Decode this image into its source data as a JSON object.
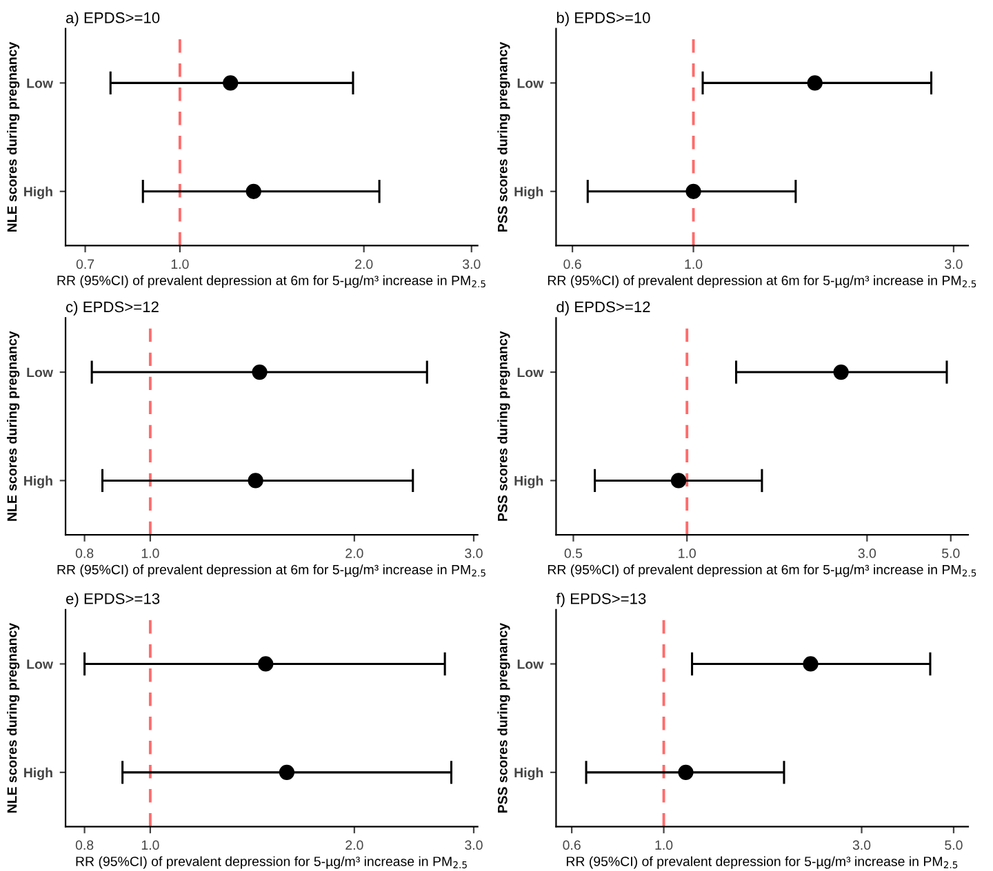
{
  "chart_data": [
    {
      "type": "scatter",
      "title": "a) EPDS>=10",
      "ylabel": "NLE scores during pregnancy",
      "xlabel": "RR (95%CI) of prevalent depression at 6m for 5-µg/m³ increase in PM$_{2.5}$",
      "orientation": "horizontal",
      "log": "x",
      "categories": [
        "Low",
        "High"
      ],
      "values": [
        1.21,
        1.32
      ],
      "errors": [
        [
          0.77,
          1.92
        ],
        [
          0.87,
          2.12
        ]
      ],
      "color": "#000000",
      "marker": "circle",
      "xlim": [
        0.65,
        3.07
      ],
      "xticks": [
        0.7,
        {
          "value": 1,
          "label": "1.0"
        },
        {
          "value": 2,
          "label": "2.0"
        },
        {
          "value": 3,
          "label": "3.0"
        }
      ],
      "ref_lines": [
        {
          "axis": "x",
          "value": 1.0,
          "color": "#ff6b6b",
          "line_style": "dashed"
        }
      ]
    },
    {
      "type": "scatter",
      "title": "b) EPDS>=10",
      "ylabel": "PSS scores during pregnancy",
      "xlabel": "RR (95%CI) of prevalent depression at 6m for 5-µg/m³ increase in PM$_{2.5}$",
      "orientation": "horizontal",
      "log": "x",
      "categories": [
        "Low",
        "High"
      ],
      "values": [
        1.67,
        1.0
      ],
      "errors": [
        [
          1.04,
          2.73
        ],
        [
          0.64,
          1.54
        ]
      ],
      "color": "#000000",
      "marker": "circle",
      "xlim": [
        0.56,
        3.19
      ],
      "xticks": [
        0.6,
        {
          "value": 1,
          "label": "1.0"
        },
        {
          "value": 3,
          "label": "3.0"
        }
      ],
      "ref_lines": [
        {
          "axis": "x",
          "value": 1.0,
          "color": "#ff6b6b",
          "line_style": "dashed"
        }
      ]
    },
    {
      "type": "scatter",
      "title": "c) EPDS>=12",
      "ylabel": "NLE scores during pregnancy",
      "xlabel": "RR (95%CI) of prevalent depression at 6m for 5-µg/m³ increase in PM$_{2.5}$",
      "orientation": "horizontal",
      "log": "x",
      "categories": [
        "Low",
        "High"
      ],
      "values": [
        1.45,
        1.43
      ],
      "errors": [
        [
          0.82,
          2.56
        ],
        [
          0.85,
          2.44
        ]
      ],
      "color": "#000000",
      "marker": "circle",
      "xlim": [
        0.75,
        3.04
      ],
      "xticks": [
        0.8,
        {
          "value": 1,
          "label": "1.0"
        },
        {
          "value": 2,
          "label": "2.0"
        },
        {
          "value": 3,
          "label": "3.0"
        }
      ],
      "ref_lines": [
        {
          "axis": "x",
          "value": 1.0,
          "color": "#ff6b6b",
          "line_style": "dashed"
        }
      ]
    },
    {
      "type": "scatter",
      "title": "d) EPDS>=12",
      "ylabel": "PSS scores during pregnancy",
      "xlabel": "RR (95%CI) of prevalent depression at 6m for 5-µg/m³ increase in PM$_{2.5}$",
      "orientation": "horizontal",
      "log": "x",
      "categories": [
        "Low",
        "High"
      ],
      "values": [
        2.56,
        0.95
      ],
      "errors": [
        [
          1.35,
          4.88
        ],
        [
          0.57,
          1.58
        ]
      ],
      "color": "#000000",
      "marker": "circle",
      "xlim": [
        0.45,
        5.56
      ],
      "xticks": [
        0.5,
        {
          "value": 1,
          "label": "1.0"
        },
        {
          "value": 3,
          "label": "3.0"
        },
        {
          "value": 5,
          "label": "5.0"
        }
      ],
      "ref_lines": [
        {
          "axis": "x",
          "value": 1.0,
          "color": "#ff6b6b",
          "line_style": "dashed"
        }
      ]
    },
    {
      "type": "scatter",
      "title": "e) EPDS>=13",
      "ylabel": "NLE scores during pregnancy",
      "xlabel": "RR (95%CI) of prevalent depression for 5-µg/m³ increase in PM$_{2.5}$",
      "orientation": "horizontal",
      "log": "x",
      "categories": [
        "Low",
        "High"
      ],
      "values": [
        1.48,
        1.59
      ],
      "errors": [
        [
          0.8,
          2.72
        ],
        [
          0.91,
          2.78
        ]
      ],
      "color": "#000000",
      "marker": "circle",
      "xlim": [
        0.75,
        3.04
      ],
      "xticks": [
        0.8,
        {
          "value": 1,
          "label": "1.0"
        },
        {
          "value": 2,
          "label": "2.0"
        },
        {
          "value": 3,
          "label": "3.0"
        }
      ],
      "ref_lines": [
        {
          "axis": "x",
          "value": 1.0,
          "color": "#ff6b6b",
          "line_style": "dashed"
        }
      ]
    },
    {
      "type": "scatter",
      "title": "f) EPDS>=13",
      "ylabel": "PSS scores during pregnancy",
      "xlabel": "RR (95%CI) of prevalent depression for 5-µg/m³ increase in PM$_{2.5}$",
      "orientation": "horizontal",
      "log": "x",
      "categories": [
        "Low",
        "High"
      ],
      "values": [
        2.26,
        1.13
      ],
      "errors": [
        [
          1.17,
          4.39
        ],
        [
          0.65,
          1.95
        ]
      ],
      "color": "#000000",
      "marker": "circle",
      "xlim": [
        0.55,
        5.42
      ],
      "xticks": [
        0.6,
        {
          "value": 1,
          "label": "1.0"
        },
        {
          "value": 3,
          "label": "3.0"
        },
        {
          "value": 5,
          "label": "5.0"
        }
      ],
      "ref_lines": [
        {
          "axis": "x",
          "value": 1.0,
          "color": "#ff6b6b",
          "line_style": "dashed"
        }
      ]
    }
  ]
}
